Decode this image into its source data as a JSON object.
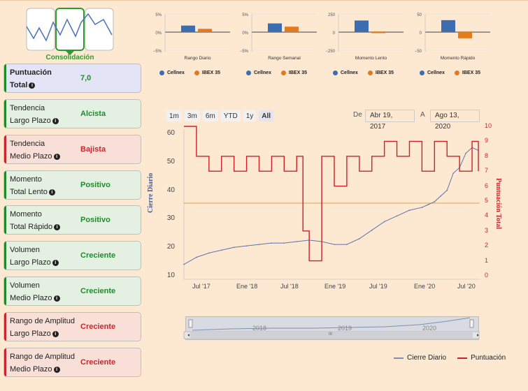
{
  "brand": {
    "label": "Consolidación"
  },
  "cards": [
    {
      "l1": "Puntuación",
      "l2": "Total",
      "value": "7,0",
      "tone": "blue"
    },
    {
      "l1": "Tendencia",
      "l2": "Largo Plazo",
      "value": "Alcista",
      "tone": "green"
    },
    {
      "l1": "Tendencia",
      "l2": "Medio Plazo",
      "value": "Bajista",
      "tone": "red"
    },
    {
      "l1": "Momento",
      "l2": "Total Lento",
      "value": "Positivo",
      "tone": "green"
    },
    {
      "l1": "Momento",
      "l2": "Total Rápido",
      "value": "Positivo",
      "tone": "green"
    },
    {
      "l1": "Volumen",
      "l2": "Largo Plazo",
      "value": "Creciente",
      "tone": "green"
    },
    {
      "l1": "Volumen",
      "l2": "Medio Plazo",
      "value": "Creciente",
      "tone": "green"
    },
    {
      "l1": "Rango de Amplitud",
      "l2": "Largo Plazo",
      "value": "Creciente",
      "tone": "red"
    },
    {
      "l1": "Rango de Amplitud",
      "l2": "Medio Plazo",
      "value": "Creciente",
      "tone": "red"
    }
  ],
  "chart_data": [
    {
      "type": "bar",
      "title": "Rango Diario",
      "categories": [
        "Rango Diario"
      ],
      "ylim": [
        -5,
        5
      ],
      "yticks": [
        "5%",
        "0%",
        "−5%"
      ],
      "series": [
        {
          "name": "Cellnex",
          "values": [
            1.8
          ]
        },
        {
          "name": "IBEX 35",
          "values": [
            0.9
          ]
        }
      ]
    },
    {
      "type": "bar",
      "title": "Rango Semanal",
      "categories": [
        "Rango Semanal"
      ],
      "ylim": [
        -5,
        5
      ],
      "yticks": [
        "5%",
        "0%",
        "−5%"
      ],
      "series": [
        {
          "name": "Cellnex",
          "values": [
            2.4
          ]
        },
        {
          "name": "IBEX 35",
          "values": [
            1.5
          ]
        }
      ]
    },
    {
      "type": "bar",
      "title": "Momento Lento",
      "categories": [
        "Momento Lento"
      ],
      "ylim": [
        -250,
        250
      ],
      "yticks": [
        "250",
        "0",
        "−250"
      ],
      "series": [
        {
          "name": "Cellnex",
          "values": [
            160
          ]
        },
        {
          "name": "IBEX 35",
          "values": [
            -10
          ]
        }
      ]
    },
    {
      "type": "bar",
      "title": "Momento Rápido",
      "categories": [
        "Momento Rápido"
      ],
      "ylim": [
        -50,
        50
      ],
      "yticks": [
        "50",
        "0",
        "−50"
      ],
      "series": [
        {
          "name": "Cellnex",
          "values": [
            33
          ]
        },
        {
          "name": "IBEX 35",
          "values": [
            -17
          ]
        }
      ]
    },
    {
      "type": "line",
      "title": "",
      "xlabel": "",
      "ylabel": "Cierre Diario",
      "y2label": "Puntuación Total",
      "ylim": [
        10,
        60
      ],
      "y2lim": [
        0,
        10
      ],
      "yticks": [
        "60",
        "50",
        "40",
        "30",
        "20",
        "10"
      ],
      "y2ticks": [
        "10",
        "9",
        "8",
        "7",
        "6",
        "5",
        "4",
        "3",
        "2",
        "1",
        "0"
      ],
      "xticks": [
        "Jul '17",
        "Ene '18",
        "Jul '18",
        "Ene '19",
        "Jul '19",
        "Ene '20",
        "Jul '20"
      ],
      "reference_line": 35.5,
      "series": [
        {
          "name": "Cierre Diario",
          "x": [
            0,
            2,
            4,
            6,
            8,
            10,
            12,
            14,
            16,
            18,
            20,
            22,
            24,
            26,
            28,
            30,
            32,
            34,
            36,
            38,
            39,
            40,
            41,
            42,
            43,
            44,
            45,
            46,
            47
          ],
          "y": [
            14,
            16.5,
            18,
            19,
            20,
            20.5,
            21,
            21.5,
            21.5,
            22,
            22.5,
            22,
            21,
            21,
            23,
            26,
            29,
            31,
            33,
            34,
            35,
            36,
            38,
            40,
            46,
            48,
            53,
            55,
            54
          ]
        },
        {
          "name": "Puntuación",
          "x": [
            0,
            2,
            4,
            6,
            8,
            10,
            12,
            14,
            16,
            18,
            19,
            20,
            22,
            24,
            26,
            28,
            30,
            32,
            34,
            36,
            38,
            40,
            42,
            44,
            46,
            47
          ],
          "y": [
            10,
            8,
            7,
            8,
            7,
            8,
            7,
            8,
            7,
            8,
            3,
            1,
            8,
            6,
            8,
            7,
            8,
            9,
            8,
            9,
            7,
            9,
            8,
            7,
            9,
            7
          ]
        }
      ]
    }
  ],
  "mini_legend": {
    "a": "Cellnex",
    "b": "IBEX 35"
  },
  "range_buttons": [
    "1m",
    "3m",
    "6m",
    "YTD",
    "1y",
    "All"
  ],
  "dates": {
    "from_label": "De",
    "from": "Abr 19, 2017",
    "to_label": "A",
    "to": "Ago 13, 2020"
  },
  "navigator": {
    "years": [
      "2018",
      "2019",
      "2020"
    ],
    "handle": "III"
  },
  "main_legend": {
    "a": "Cierre Diario",
    "b": "Puntuación"
  },
  "colors": {
    "blue": "#3b6db0",
    "orange": "#e27a1f",
    "red": "#d11f26",
    "green": "#1f8a2b"
  }
}
